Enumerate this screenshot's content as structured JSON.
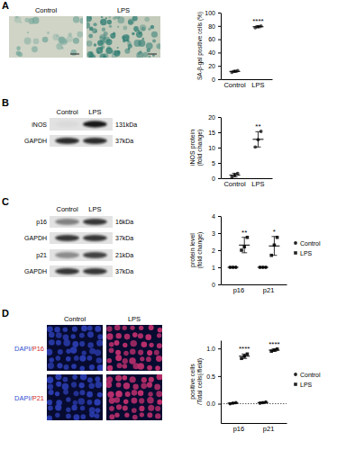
{
  "figure": {
    "panels": [
      {
        "label": "A",
        "images": {
          "columns": [
            "Control",
            "LPS"
          ]
        }
      },
      {
        "label": "B",
        "blot": {
          "columns": [
            "Control",
            "LPS"
          ],
          "rows": [
            {
              "protein": "iNOS",
              "size": "131kDa"
            },
            {
              "protein": "GAPDH",
              "size": "37kDa"
            }
          ]
        }
      },
      {
        "label": "C",
        "blot": {
          "columns": [
            "Control",
            "LPS"
          ],
          "rows": [
            {
              "protein": "p16",
              "size": "16kDa"
            },
            {
              "protein": "GAPDH",
              "size": "37kDa"
            },
            {
              "protein": "p21",
              "size": "21kDa"
            },
            {
              "protein": "GAPDH",
              "size": "37kDa"
            }
          ]
        }
      },
      {
        "label": "D",
        "images": {
          "columns": [
            "Control",
            "LPS"
          ],
          "rows": [
            [
              "DAPI/",
              "P16"
            ],
            [
              "DAPI/",
              "P21"
            ]
          ]
        }
      }
    ]
  },
  "chart_data": [
    {
      "type": "dot",
      "y_label": [
        "SA-β-gal positive cells (%)"
      ],
      "categories": [
        "Control",
        "LPS"
      ],
      "color": "#555555",
      "values": [
        11.7,
        78.7
      ],
      "error": [
        1.4,
        1.5
      ],
      "points": [
        [
          10.3,
          11.9,
          12.9
        ],
        [
          77.2,
          78.9,
          80.0
        ]
      ],
      "significance": [
        null,
        "****"
      ],
      "ylim": [
        0,
        100
      ],
      "yticks": [
        0,
        20,
        40,
        60,
        80,
        100
      ],
      "grid": false
    },
    {
      "type": "dot",
      "y_label": [
        "iNOS protein",
        "(fold change)"
      ],
      "categories": [
        "Control",
        "LPS"
      ],
      "color": "#444444",
      "values": [
        1.0,
        12.7
      ],
      "error": [
        0.6,
        2.5
      ],
      "points": [
        [
          0.4,
          1.0,
          1.6
        ],
        [
          10.2,
          12.6,
          15.3
        ]
      ],
      "significance": [
        null,
        "**"
      ],
      "ylim": [
        0,
        20
      ],
      "yticks": [
        0,
        5,
        10,
        15,
        20
      ],
      "grid": false
    },
    {
      "type": "dot",
      "y_label": [
        "protein level",
        "(fold change)"
      ],
      "categories": [
        "p16",
        "p21"
      ],
      "series": [
        {
          "name": "Control",
          "color": "#222222",
          "marker": "circle",
          "values": [
            1,
            1
          ],
          "error": [
            0,
            0
          ],
          "points": [
            [
              1,
              1,
              1
            ],
            [
              1,
              1,
              1
            ]
          ]
        },
        {
          "name": "LPS",
          "color": "#222222",
          "marker": "square",
          "values": [
            2.3,
            2.25
          ],
          "error": [
            0.45,
            0.55
          ],
          "points": [
            [
              2.0,
              2.2,
              2.75
            ],
            [
              1.7,
              2.3,
              2.75
            ]
          ]
        }
      ],
      "significance": [
        "**",
        "*"
      ],
      "legend": "right",
      "ylim": [
        0,
        4
      ],
      "yticks": [
        0,
        1,
        2,
        3,
        4
      ],
      "grid": false
    },
    {
      "type": "dot",
      "y_label": [
        "positive cells",
        "/Total cells(/field)"
      ],
      "categories": [
        "p16",
        "p21"
      ],
      "series": [
        {
          "name": "Control",
          "color": "#222222",
          "marker": "circle",
          "values": [
            0.01,
            0.02
          ],
          "error": [
            0.005,
            0.01
          ],
          "points": [
            [
              0.0,
              0.01,
              0.02
            ],
            [
              0.01,
              0.02,
              0.03
            ]
          ]
        },
        {
          "name": "LPS",
          "color": "#222222",
          "marker": "square",
          "values": [
            0.86,
            0.97
          ],
          "error": [
            0.04,
            0.02
          ],
          "points": [
            [
              0.82,
              0.86,
              0.9
            ],
            [
              0.95,
              0.97,
              0.99
            ]
          ]
        }
      ],
      "significance": [
        "****",
        "****"
      ],
      "legend": "right",
      "baseline": 0,
      "ylim": [
        -0.35,
        1.15
      ],
      "yticks": [
        {
          "value": 0,
          "label": "0.0"
        },
        {
          "value": 0.5,
          "label": "0.5"
        },
        {
          "value": 1,
          "label": "1.0"
        }
      ],
      "grid": false
    }
  ]
}
